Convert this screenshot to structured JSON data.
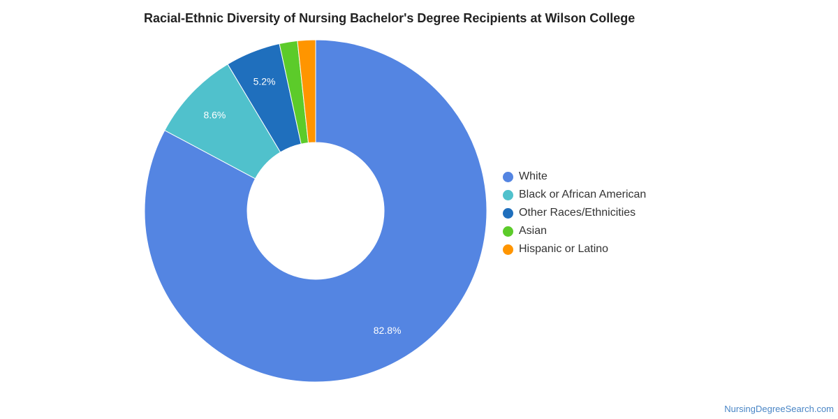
{
  "chart_data": {
    "type": "pie",
    "title": "Racial-Ethnic Diversity of Nursing Bachelor's Degree Recipients at Wilson College",
    "donut": true,
    "legend_position": "right",
    "categories": [
      "White",
      "Black or African American",
      "Other Races/Ethnicities",
      "Asian",
      "Hispanic or Latino"
    ],
    "values": [
      82.8,
      8.6,
      5.2,
      1.7,
      1.7
    ],
    "data_labels": [
      "82.8%",
      "8.6%",
      "5.2%",
      "",
      ""
    ],
    "colors": [
      "#5485e2",
      "#50c1cc",
      "#1f6fbd",
      "#5ccb2a",
      "#ff9500"
    ]
  },
  "watermark": "NursingDegreeSearch.com"
}
